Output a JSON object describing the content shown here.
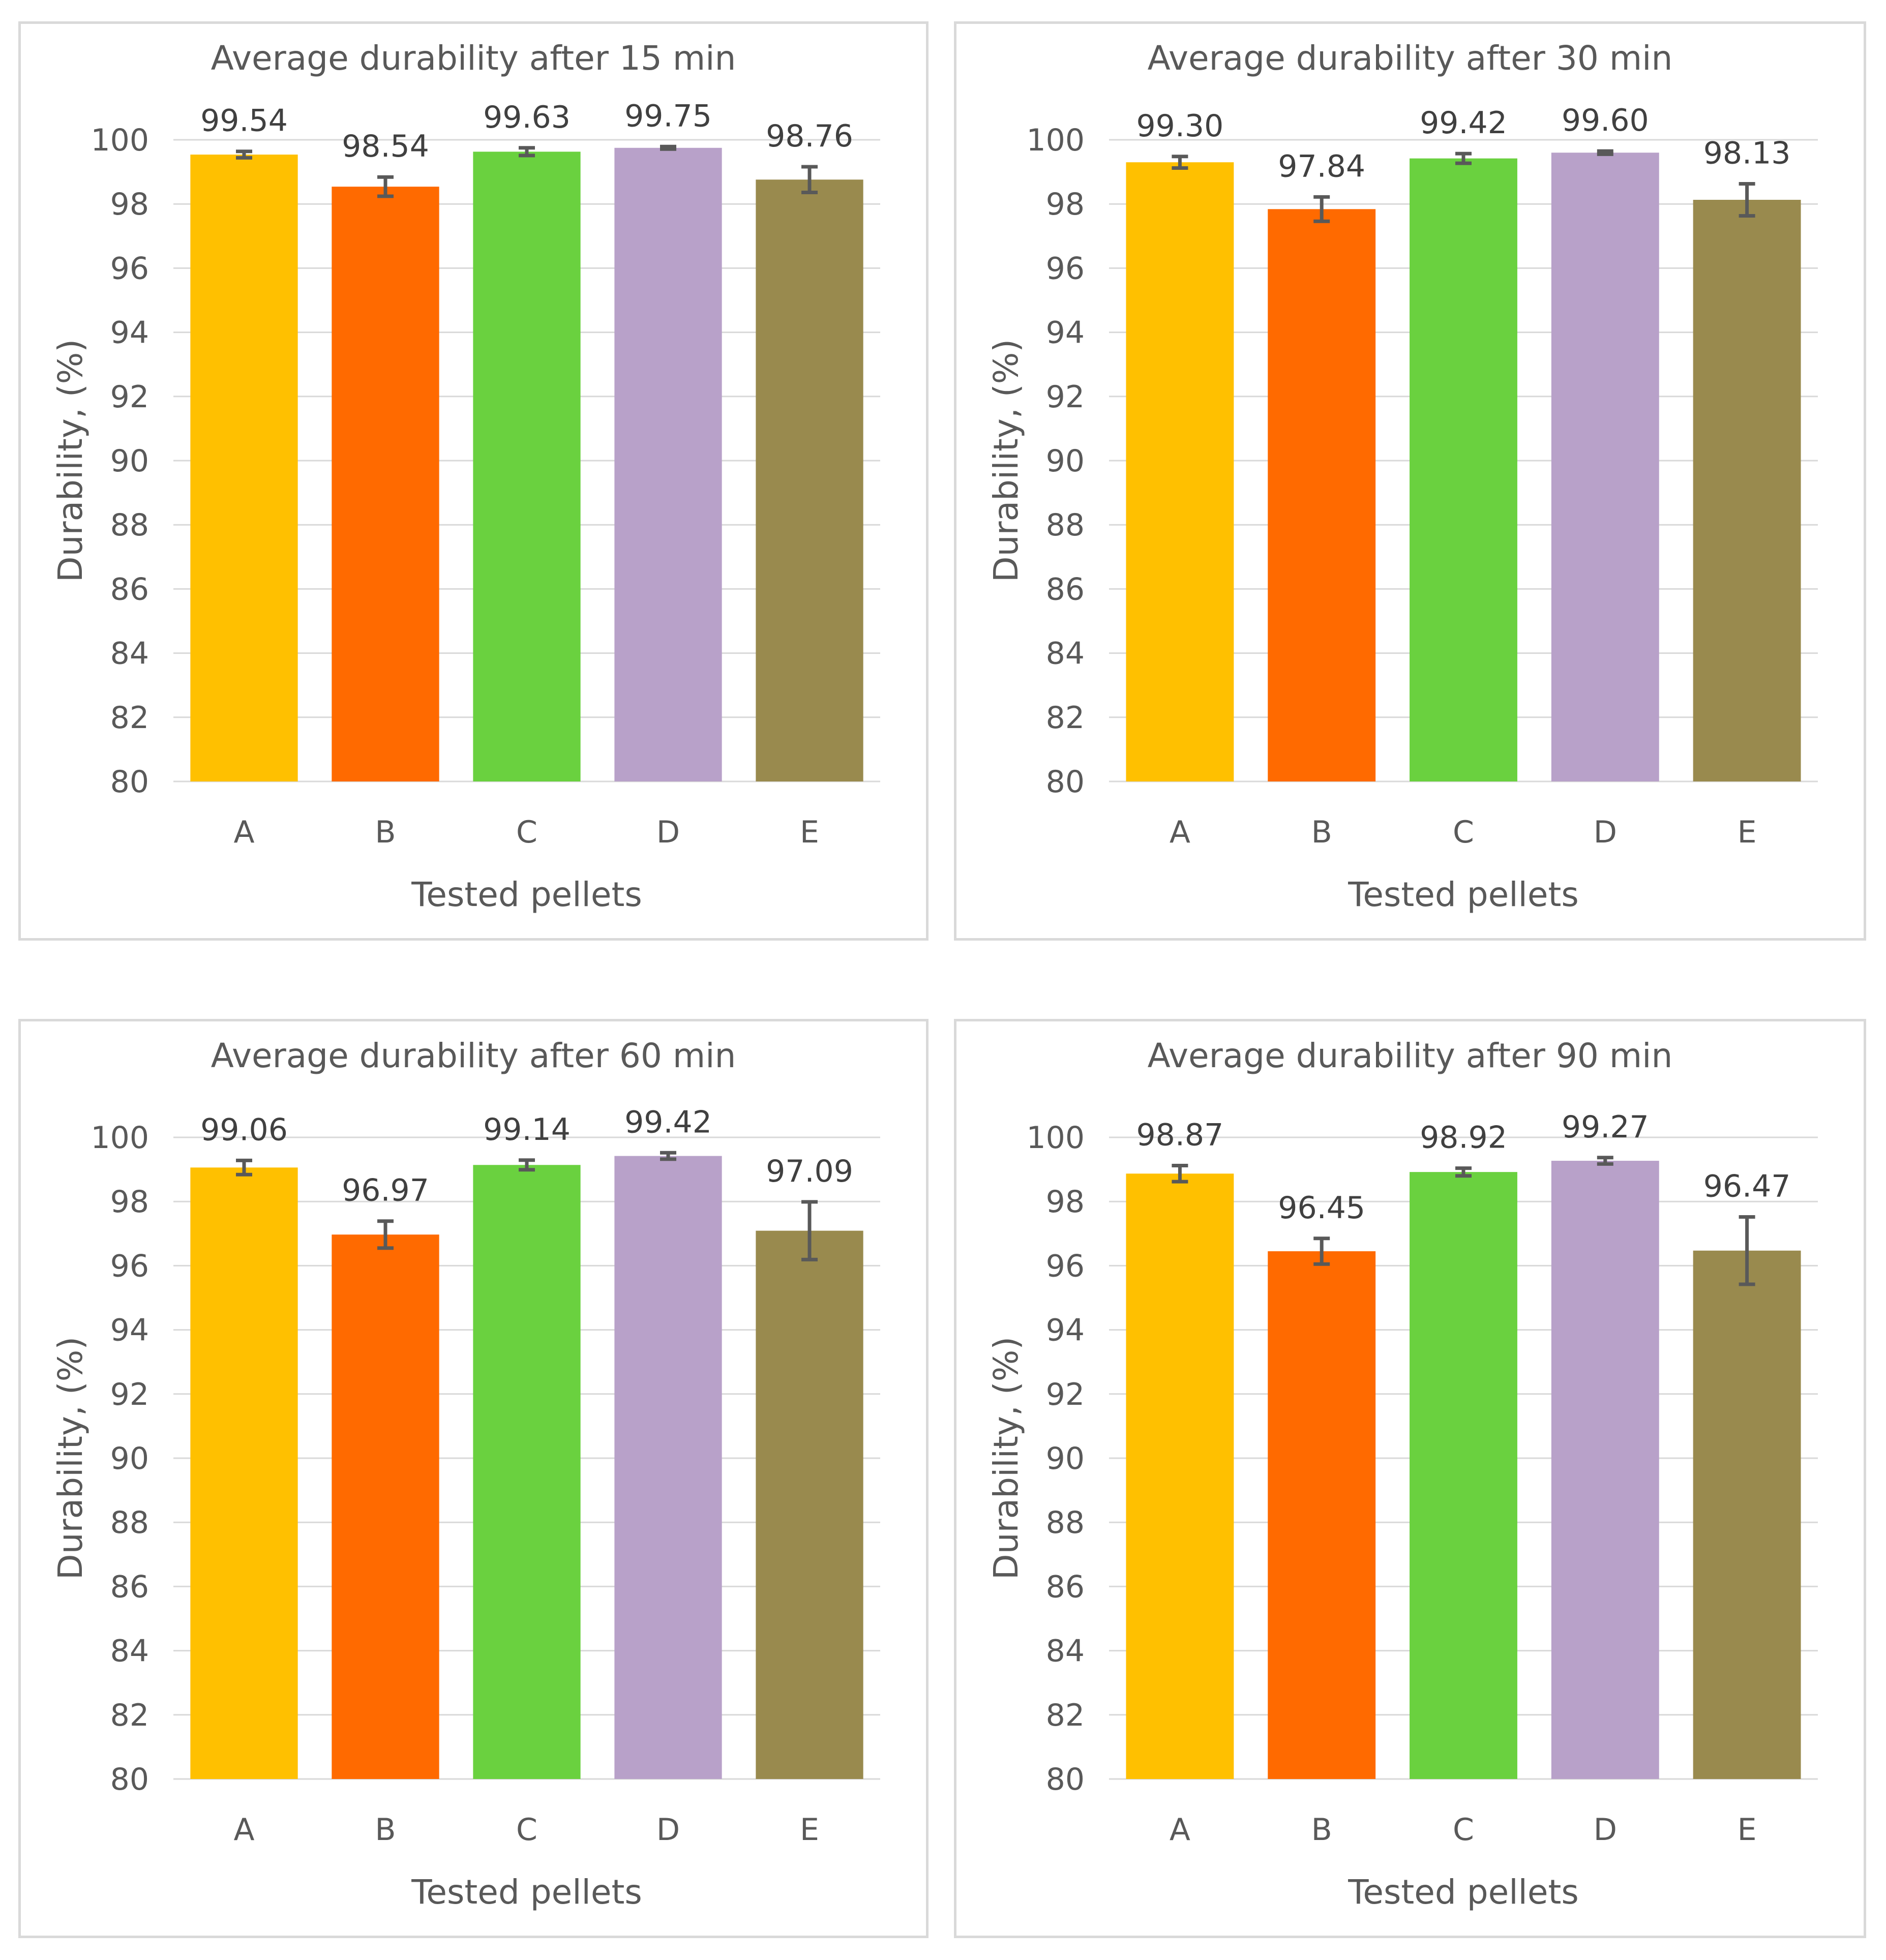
{
  "chart_data": [
    {
      "type": "bar",
      "title": "Average durability after 15 min",
      "xlabel": "Tested pellets",
      "ylabel": "Durability, (%)",
      "categories": [
        "A",
        "B",
        "C",
        "D",
        "E"
      ],
      "values": [
        99.54,
        98.54,
        99.63,
        99.75,
        98.76
      ],
      "value_labels": [
        "99.54",
        "98.54",
        "99.63",
        "99.75",
        "98.76"
      ],
      "errors": [
        0.1,
        0.3,
        0.12,
        0.04,
        0.4
      ],
      "colors": [
        "#FFC000",
        "#FF6A00",
        "#6AD13F",
        "#B8A1C9",
        "#998A4E"
      ],
      "ylim": [
        80,
        100
      ],
      "yticks": [
        "80",
        "82",
        "84",
        "86",
        "88",
        "90",
        "92",
        "94",
        "96",
        "98",
        "100"
      ],
      "grid": true
    },
    {
      "type": "bar",
      "title": "Average durability after 30 min",
      "xlabel": "Tested pellets",
      "ylabel": "Durability, (%)",
      "categories": [
        "A",
        "B",
        "C",
        "D",
        "E"
      ],
      "values": [
        99.3,
        97.84,
        99.42,
        99.6,
        98.13
      ],
      "value_labels": [
        "99.30",
        "97.84",
        "99.42",
        "99.60",
        "98.13"
      ],
      "errors": [
        0.18,
        0.38,
        0.15,
        0.05,
        0.5
      ],
      "colors": [
        "#FFC000",
        "#FF6A00",
        "#6AD13F",
        "#B8A1C9",
        "#998A4E"
      ],
      "ylim": [
        80,
        100
      ],
      "yticks": [
        "80",
        "82",
        "84",
        "86",
        "88",
        "90",
        "92",
        "94",
        "96",
        "98",
        "100"
      ],
      "grid": true
    },
    {
      "type": "bar",
      "title": "Average durability after 60 min",
      "xlabel": "Tested pellets",
      "ylabel": "Durability, (%)",
      "categories": [
        "A",
        "B",
        "C",
        "D",
        "E"
      ],
      "values": [
        99.06,
        96.97,
        99.14,
        99.42,
        97.09
      ],
      "value_labels": [
        "99.06",
        "96.97",
        "99.14",
        "99.42",
        "97.09"
      ],
      "errors": [
        0.22,
        0.42,
        0.15,
        0.1,
        0.9
      ],
      "colors": [
        "#FFC000",
        "#FF6A00",
        "#6AD13F",
        "#B8A1C9",
        "#998A4E"
      ],
      "ylim": [
        80,
        100
      ],
      "yticks": [
        "80",
        "82",
        "84",
        "86",
        "88",
        "90",
        "92",
        "94",
        "96",
        "98",
        "100"
      ],
      "grid": true
    },
    {
      "type": "bar",
      "title": "Average durability after 90 min",
      "xlabel": "Tested pellets",
      "ylabel": "Durability, (%)",
      "categories": [
        "A",
        "B",
        "C",
        "D",
        "E"
      ],
      "values": [
        98.87,
        96.45,
        98.92,
        99.27,
        96.47
      ],
      "value_labels": [
        "98.87",
        "96.45",
        "98.92",
        "99.27",
        "96.47"
      ],
      "errors": [
        0.25,
        0.4,
        0.12,
        0.1,
        1.05
      ],
      "colors": [
        "#FFC000",
        "#FF6A00",
        "#6AD13F",
        "#B8A1C9",
        "#998A4E"
      ],
      "ylim": [
        80,
        100
      ],
      "yticks": [
        "80",
        "82",
        "84",
        "86",
        "88",
        "90",
        "92",
        "94",
        "96",
        "98",
        "100"
      ],
      "grid": true
    }
  ]
}
